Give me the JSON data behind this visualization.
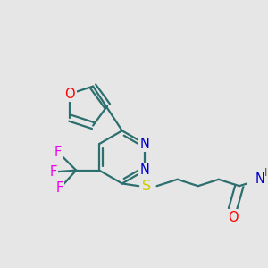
{
  "background_color": "#e6e6e6",
  "bond_color": "#2d6e6e",
  "bond_width": 1.6,
  "atom_colors": {
    "O": "#ff0000",
    "N": "#0000cc",
    "S": "#cccc00",
    "F": "#ee00ee",
    "H": "#555555",
    "C": "#2d6e6e"
  },
  "font_size": 9.5
}
